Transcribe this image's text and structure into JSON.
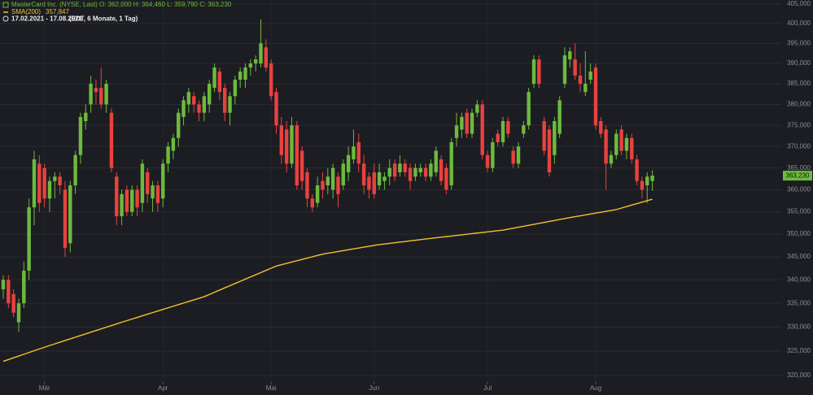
{
  "chart_data": {
    "type": "candlestick",
    "instrument": "MasterCard Inc. (NYSE, Last)",
    "ohlc_info": "O: 362,000  H: 364,460  L: 359,790  C: 363,230",
    "period": "17.02.2021 - 17.08.2021",
    "period_info": "(EDT, 6 Monate, 1 Tag)",
    "log_scale": true,
    "grid": true,
    "ylim": [
      318.7,
      406
    ],
    "yticks": [
      {
        "value": 320,
        "label": "320,000"
      },
      {
        "value": 325,
        "label": "325,000"
      },
      {
        "value": 330,
        "label": "330,000"
      },
      {
        "value": 335,
        "label": "335,000"
      },
      {
        "value": 340,
        "label": "340,000"
      },
      {
        "value": 345,
        "label": "345,000"
      },
      {
        "value": 350,
        "label": "350,000"
      },
      {
        "value": 355,
        "label": "355,000"
      },
      {
        "value": 360,
        "label": "360,000"
      },
      {
        "value": 365,
        "label": "365,000"
      },
      {
        "value": 370,
        "label": "370,000"
      },
      {
        "value": 375,
        "label": "375,000"
      },
      {
        "value": 380,
        "label": "380,000"
      },
      {
        "value": 385,
        "label": "385,000"
      },
      {
        "value": 390,
        "label": "390,000"
      },
      {
        "value": 395,
        "label": "395,000"
      },
      {
        "value": 400,
        "label": "400,000"
      },
      {
        "value": 405,
        "label": "405,000"
      }
    ],
    "last_price": {
      "value": 363.23,
      "label": "363,230"
    },
    "categories": [
      null,
      null,
      null,
      null,
      null,
      null,
      null,
      null,
      "Mär",
      null,
      null,
      null,
      null,
      null,
      null,
      null,
      null,
      null,
      null,
      null,
      null,
      null,
      null,
      null,
      null,
      null,
      null,
      null,
      null,
      null,
      null,
      "Apr",
      null,
      null,
      null,
      null,
      null,
      null,
      null,
      null,
      null,
      null,
      null,
      null,
      null,
      null,
      null,
      null,
      null,
      null,
      null,
      null,
      "Mai",
      null,
      null,
      null,
      null,
      null,
      null,
      null,
      null,
      null,
      null,
      null,
      null,
      null,
      null,
      null,
      null,
      null,
      null,
      null,
      "Jun",
      null,
      null,
      null,
      null,
      null,
      null,
      null,
      null,
      null,
      null,
      null,
      null,
      null,
      null,
      null,
      null,
      null,
      null,
      null,
      null,
      null,
      "Jul",
      null,
      null,
      null,
      null,
      null,
      null,
      null,
      null,
      null,
      null,
      null,
      null,
      null,
      null,
      null,
      null,
      null,
      null,
      null,
      null,
      "Aug",
      null,
      null,
      null,
      null,
      null,
      null,
      null,
      null,
      null,
      null,
      null
    ],
    "up_color": "#6cbb3c",
    "down_color": "#e8423f",
    "open": [
      338,
      340,
      337,
      331,
      335,
      342,
      356,
      366,
      365,
      358,
      362,
      363,
      360,
      348,
      361,
      368,
      376,
      380,
      384,
      384,
      380,
      378,
      363,
      354,
      360,
      355,
      360,
      357,
      364,
      358,
      361,
      358,
      366,
      369,
      372,
      377,
      380,
      382,
      380,
      378,
      380,
      384,
      388,
      384,
      378,
      382,
      386,
      386,
      389,
      390,
      390,
      394,
      390,
      383,
      375,
      374,
      366,
      375,
      369,
      364,
      358,
      357,
      362,
      361,
      360,
      363,
      361,
      364,
      367,
      371,
      366,
      363,
      364,
      361,
      362,
      363,
      366,
      364,
      366,
      365,
      363,
      364,
      365,
      363,
      364,
      367,
      365,
      361,
      372,
      374,
      378,
      373,
      378,
      380,
      368,
      365,
      373,
      371,
      376,
      369,
      366,
      373,
      375,
      385,
      391,
      376,
      374,
      368,
      373,
      385,
      391,
      391,
      387,
      383,
      386,
      389,
      376,
      374,
      366,
      368,
      374,
      369,
      372,
      367,
      362,
      361,
      362
    ],
    "high": [
      341,
      341,
      338,
      336,
      344,
      358,
      369,
      368,
      366,
      363,
      364,
      364,
      362,
      362,
      369,
      378,
      380,
      387,
      386,
      389,
      386,
      379,
      364,
      360,
      361,
      361,
      361,
      367,
      365,
      362,
      362,
      367,
      371,
      373,
      379,
      382,
      384,
      383,
      381,
      383,
      386,
      390,
      389,
      385,
      383,
      387,
      389,
      390,
      391,
      392,
      401,
      396,
      391,
      384,
      377,
      376,
      377,
      376,
      370,
      365,
      359,
      363,
      364,
      365,
      366,
      364,
      367,
      370,
      374,
      373,
      368,
      364,
      366,
      366,
      364,
      367,
      367,
      368,
      367,
      366,
      366,
      366,
      366,
      367,
      370,
      368,
      366,
      372,
      378,
      378,
      379,
      379,
      381,
      381,
      369,
      372,
      374,
      377,
      377,
      370,
      371,
      376,
      384,
      392,
      392,
      377,
      375,
      377,
      382,
      394,
      394,
      395,
      390,
      393,
      390,
      390,
      377,
      375,
      369,
      374,
      375,
      373,
      373,
      368,
      363,
      364,
      364.46
    ],
    "low": [
      336,
      334,
      332,
      329,
      334,
      340,
      352,
      355,
      356,
      355,
      358,
      359,
      345,
      346,
      359,
      366,
      374,
      378,
      380,
      379,
      378,
      364,
      352,
      352,
      354,
      354,
      354,
      355,
      357,
      355,
      355,
      356,
      364,
      367,
      370,
      375,
      378,
      378,
      376,
      376,
      378,
      383,
      381,
      376,
      375,
      380,
      384,
      384,
      387,
      388,
      389,
      388,
      381,
      373,
      366,
      364,
      365,
      360,
      360,
      356,
      355,
      356,
      358,
      359,
      358,
      356,
      360,
      362,
      366,
      364,
      359,
      358,
      358,
      360,
      360,
      361,
      362,
      363,
      363,
      360,
      362,
      363,
      362,
      362,
      363,
      361,
      359,
      360,
      370,
      372,
      372,
      372,
      377,
      367,
      364,
      364,
      370,
      370,
      372,
      365,
      365,
      372,
      374,
      384,
      384,
      368,
      363,
      366,
      372,
      384,
      389,
      386,
      383,
      382,
      385,
      374,
      372,
      360,
      365,
      367,
      368,
      367,
      366,
      361,
      358,
      357,
      359.79
    ],
    "close": [
      340,
      335,
      333,
      335,
      342,
      356,
      367,
      357,
      358,
      362,
      363,
      361,
      347,
      361,
      368,
      377,
      378,
      385,
      383,
      380,
      385,
      365,
      354,
      359,
      355,
      360,
      356,
      366,
      359,
      361,
      357,
      366,
      370,
      372,
      378,
      381,
      383,
      380,
      378,
      382,
      385,
      389,
      383,
      378,
      382,
      386,
      388,
      389,
      390,
      391,
      395,
      389,
      382,
      375,
      368,
      366,
      375,
      361,
      362,
      358,
      356,
      361,
      360,
      363,
      365,
      359,
      366,
      368,
      370,
      366,
      361,
      360,
      359,
      364,
      363,
      365,
      363,
      366,
      364,
      362,
      365,
      365,
      363,
      366,
      369,
      362,
      360,
      371,
      375,
      377,
      373,
      378,
      380,
      368,
      365,
      371,
      371,
      376,
      373,
      366,
      370,
      375,
      383,
      391,
      385,
      369,
      364,
      376,
      381,
      392,
      393,
      387,
      385,
      385,
      388,
      375,
      373,
      366,
      368,
      373,
      369,
      372,
      367,
      362,
      360,
      363,
      363.23
    ],
    "series": [
      {
        "name": "SMA(200)",
        "value_label": "357,847",
        "color": "#f2c12e",
        "values": [
          322.9,
          323.26,
          323.63,
          323.99,
          324.35,
          324.71,
          325.08,
          325.44,
          325.8,
          326.15,
          326.49,
          326.84,
          327.19,
          327.53,
          327.88,
          328.23,
          328.57,
          328.92,
          329.27,
          329.61,
          329.96,
          330.31,
          330.65,
          331,
          331.34,
          331.68,
          332.01,
          332.35,
          332.69,
          333.03,
          333.36,
          333.7,
          334.04,
          334.38,
          334.71,
          335.05,
          335.39,
          335.73,
          336.06,
          336.4,
          336.87,
          337.34,
          337.81,
          338.29,
          338.76,
          339.23,
          339.7,
          340.17,
          340.64,
          341.11,
          341.59,
          342.06,
          342.53,
          343,
          343.29,
          343.58,
          343.87,
          344.16,
          344.44,
          344.73,
          345.02,
          345.31,
          345.6,
          345.79,
          345.98,
          346.17,
          346.36,
          346.55,
          346.75,
          346.94,
          347.13,
          347.32,
          347.51,
          347.7,
          347.84,
          347.97,
          348.11,
          348.25,
          348.38,
          348.52,
          348.65,
          348.79,
          348.93,
          349.06,
          349.2,
          349.33,
          349.46,
          349.59,
          349.72,
          349.85,
          349.98,
          350.12,
          350.25,
          350.38,
          350.51,
          350.64,
          350.77,
          350.9,
          351.12,
          351.33,
          351.55,
          351.76,
          351.98,
          352.19,
          352.41,
          352.62,
          352.84,
          353.05,
          353.27,
          353.48,
          353.7,
          353.9,
          354.1,
          354.3,
          354.5,
          354.7,
          354.9,
          355.1,
          355.3,
          355.5,
          355.84,
          356.17,
          356.51,
          356.84,
          357.18,
          357.51,
          357.847
        ]
      }
    ]
  }
}
